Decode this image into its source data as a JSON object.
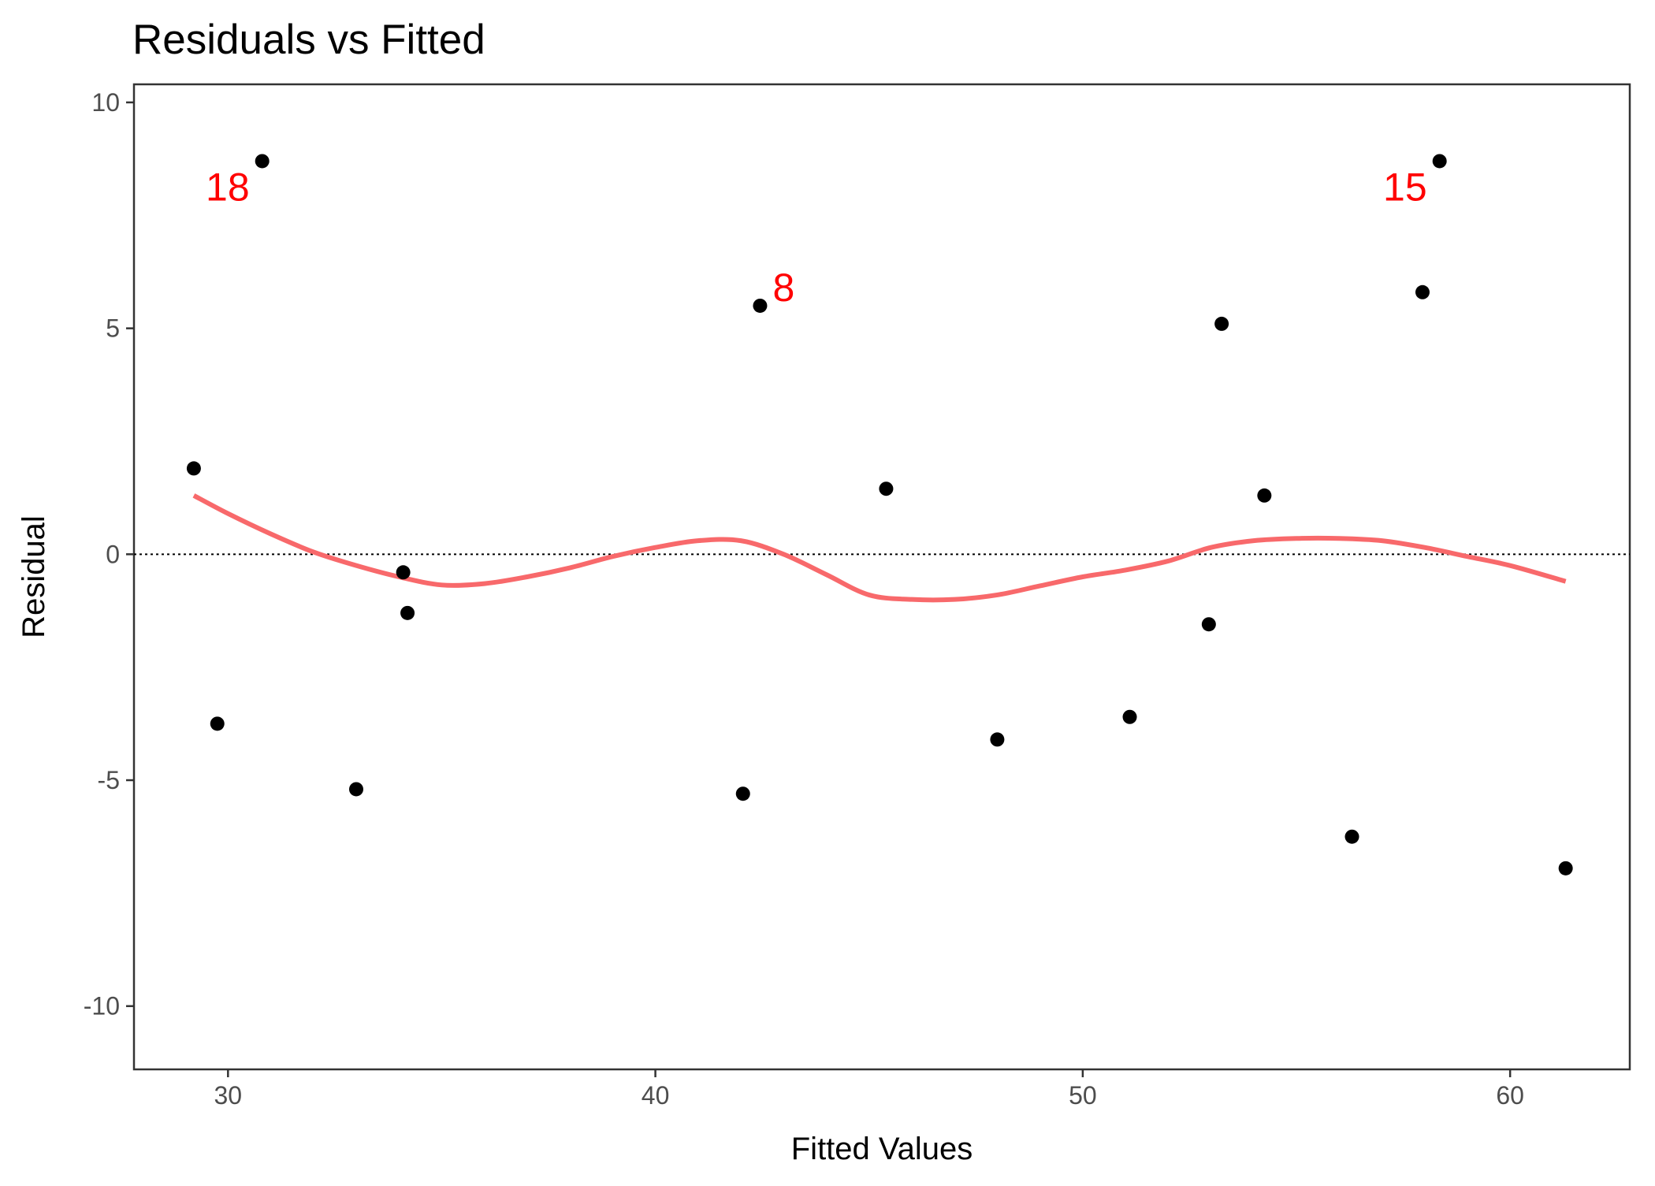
{
  "chart_data": {
    "type": "scatter",
    "title": "Residuals vs Fitted",
    "xlabel": "Fitted Values",
    "ylabel": "Residual",
    "xlim": [
      27.8,
      62.8
    ],
    "ylim": [
      -11.4,
      10.4
    ],
    "xticks": [
      30,
      40,
      50,
      60
    ],
    "yticks": [
      -10,
      -5,
      0,
      5,
      10
    ],
    "grid": false,
    "reference_line": {
      "y": 0,
      "style": "dotted",
      "color": "#000000"
    },
    "points": [
      {
        "x": 29.2,
        "y": 1.9
      },
      {
        "x": 29.75,
        "y": -3.75
      },
      {
        "x": 30.8,
        "y": 8.7,
        "label": "18"
      },
      {
        "x": 33.0,
        "y": -5.2
      },
      {
        "x": 34.1,
        "y": -0.4
      },
      {
        "x": 34.2,
        "y": -1.3
      },
      {
        "x": 42.05,
        "y": -5.3
      },
      {
        "x": 42.45,
        "y": 5.5,
        "label": "8"
      },
      {
        "x": 45.4,
        "y": 1.45
      },
      {
        "x": 48.0,
        "y": -4.1
      },
      {
        "x": 51.1,
        "y": -3.6
      },
      {
        "x": 52.95,
        "y": -1.55
      },
      {
        "x": 53.25,
        "y": 5.1
      },
      {
        "x": 54.25,
        "y": 1.3
      },
      {
        "x": 56.3,
        "y": -6.25
      },
      {
        "x": 57.95,
        "y": 5.8
      },
      {
        "x": 58.35,
        "y": 8.7,
        "label": "15"
      },
      {
        "x": 61.3,
        "y": -6.95
      }
    ],
    "smooth": {
      "color": "#f8696b",
      "x": [
        29.2,
        30.0,
        31.0,
        32.0,
        33.0,
        34.0,
        35.0,
        36.0,
        37.0,
        38.0,
        39.0,
        40.0,
        41.0,
        42.0,
        43.0,
        44.0,
        45.0,
        46.0,
        47.0,
        48.0,
        49.0,
        50.0,
        51.0,
        52.0,
        53.0,
        54.0,
        55.0,
        56.0,
        57.0,
        58.0,
        59.0,
        60.0,
        61.3
      ],
      "y": [
        1.3,
        0.9,
        0.45,
        0.05,
        -0.25,
        -0.5,
        -0.68,
        -0.65,
        -0.5,
        -0.3,
        -0.05,
        0.15,
        0.3,
        0.3,
        0.0,
        -0.45,
        -0.9,
        -1.0,
        -1.0,
        -0.9,
        -0.7,
        -0.5,
        -0.35,
        -0.15,
        0.15,
        0.3,
        0.35,
        0.35,
        0.3,
        0.15,
        -0.05,
        -0.25,
        -0.6
      ]
    }
  }
}
